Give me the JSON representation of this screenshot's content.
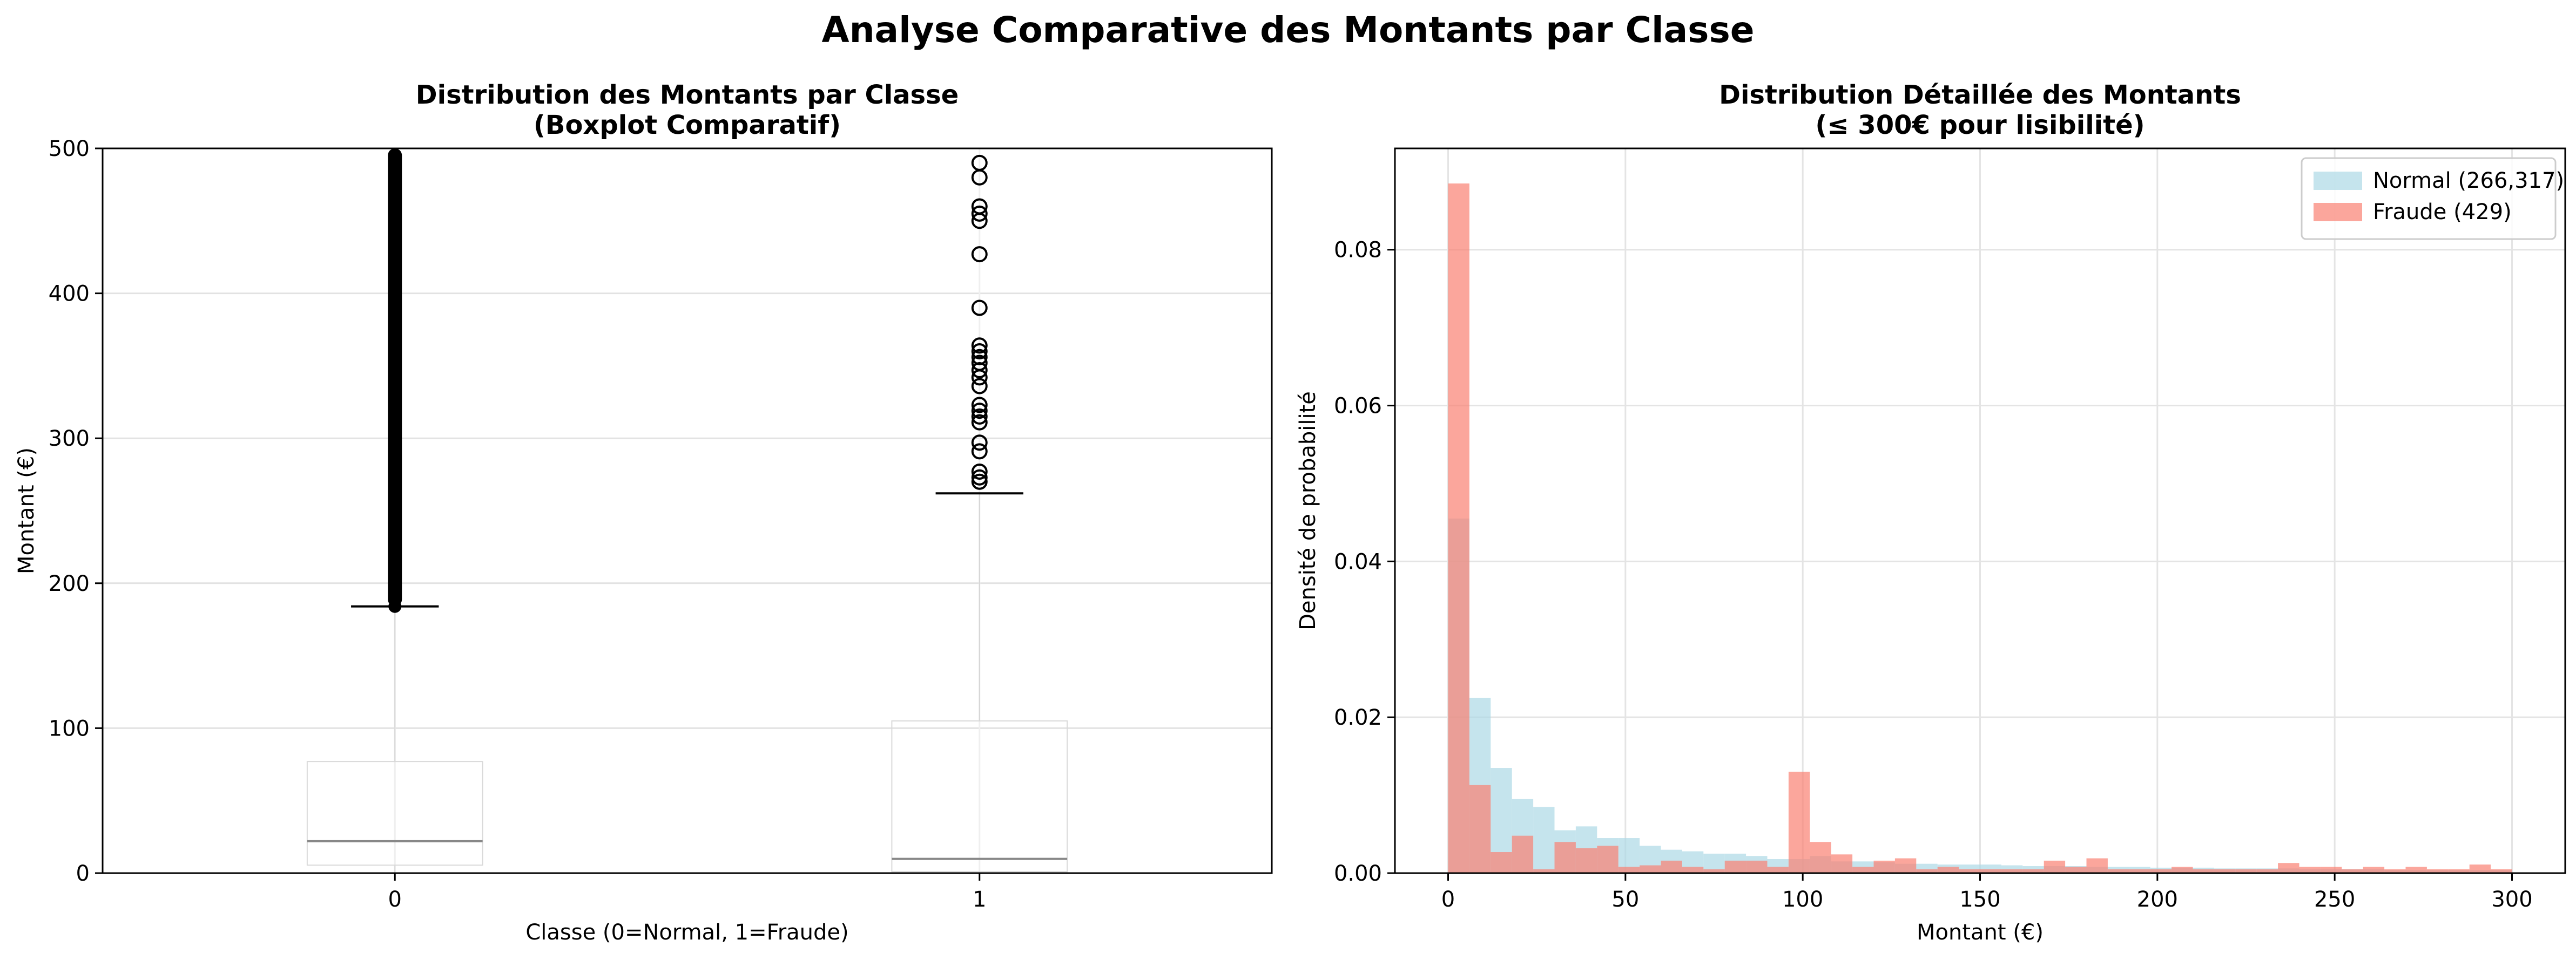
{
  "figure": {
    "suptitle": "Analyse Comparative des Montants par Classe"
  },
  "chart_data": [
    {
      "type": "boxplot",
      "title_line1": "Distribution des Montants par Classe",
      "title_line2": "(Boxplot Comparatif)",
      "xlabel": "Classe (0=Normal, 1=Fraude)",
      "ylabel": "Montant (€)",
      "ylim": [
        0,
        500
      ],
      "yticks": [
        0,
        100,
        200,
        300,
        400,
        500
      ],
      "categories": [
        "0",
        "1"
      ],
      "grid": true,
      "boxes": [
        {
          "category": "0",
          "whisker_low": 0,
          "q1": 5.5,
          "median": 22,
          "q3": 77,
          "whisker_high": 184,
          "outliers_continuous_from": 184,
          "outliers_continuous_to": 500
        },
        {
          "category": "1",
          "whisker_low": 0,
          "q1": 1,
          "median": 9.8,
          "q3": 105,
          "whisker_high": 262,
          "outliers": [
            270,
            273,
            277,
            291,
            297,
            311,
            315,
            319,
            323,
            336,
            342,
            347,
            352,
            356,
            360,
            364,
            390,
            427,
            450,
            455,
            460,
            480,
            490
          ]
        }
      ]
    },
    {
      "type": "histogram",
      "title_line1": "Distribution Détaillée des Montants",
      "title_line2": "(≤ 300€ pour lisibilité)",
      "xlabel": "Montant (€)",
      "ylabel": "Densité de probabilité",
      "xlim": [
        -15,
        315
      ],
      "ylim": [
        0,
        0.093
      ],
      "xticks": [
        0,
        50,
        100,
        150,
        200,
        250,
        300
      ],
      "yticks": [
        0.0,
        0.02,
        0.04,
        0.06,
        0.08
      ],
      "grid": true,
      "legend_position": "top-right",
      "bin_start": 0,
      "bin_width": 6,
      "series": [
        {
          "name": "Normal (266,317)",
          "color": "#add8e6",
          "densities": [
            0.0455,
            0.0225,
            0.0135,
            0.0095,
            0.0085,
            0.0055,
            0.006,
            0.0045,
            0.0045,
            0.0035,
            0.003,
            0.0028,
            0.0025,
            0.0025,
            0.0022,
            0.0018,
            0.0018,
            0.0022,
            0.0015,
            0.0015,
            0.0014,
            0.0012,
            0.0012,
            0.0011,
            0.0011,
            0.0011,
            0.001,
            0.0009,
            0.0009,
            0.0009,
            0.0008,
            0.0008,
            0.0008,
            0.0007,
            0.0007,
            0.0007,
            0.0006,
            0.0006,
            0.0006,
            0.0006,
            0.0005,
            0.0005,
            0.0005,
            0.0005,
            0.0004,
            0.0004,
            0.0004,
            0.0004,
            0.0004,
            0.0004
          ]
        },
        {
          "name": "Fraude (429)",
          "color": "#fa8072",
          "densities": [
            0.0885,
            0.0113,
            0.0027,
            0.0048,
            0.0005,
            0.004,
            0.0032,
            0.0035,
            0.0008,
            0.001,
            0.0016,
            0.0008,
            0.0005,
            0.0016,
            0.0016,
            0.0008,
            0.013,
            0.004,
            0.0024,
            0.0008,
            0.0016,
            0.0019,
            0.0005,
            0.0008,
            0.0005,
            0.0005,
            0.0005,
            0.0005,
            0.0016,
            0.0008,
            0.0019,
            0.0005,
            0.0005,
            0.0005,
            0.0008,
            0.0005,
            0.0005,
            0.0005,
            0.0005,
            0.0013,
            0.0008,
            0.0008,
            0.0005,
            0.0008,
            0.0005,
            0.0008,
            0.0005,
            0.0005,
            0.0011,
            0.0005
          ]
        }
      ]
    }
  ]
}
